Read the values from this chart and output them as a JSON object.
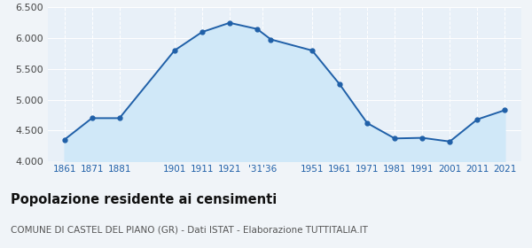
{
  "years": [
    1861,
    1871,
    1881,
    1901,
    1911,
    1921,
    1931,
    1936,
    1951,
    1961,
    1971,
    1981,
    1991,
    2001,
    2011,
    2021
  ],
  "population": [
    4350,
    4700,
    4700,
    5800,
    6100,
    6250,
    6150,
    5980,
    5800,
    5250,
    4620,
    4370,
    4380,
    4320,
    4680,
    4830
  ],
  "ylim": [
    4000,
    6500
  ],
  "yticks": [
    4000,
    4500,
    5000,
    5500,
    6000,
    6500
  ],
  "line_color": "#2060a8",
  "fill_color": "#d0e8f8",
  "marker_color": "#2060a8",
  "background_color": "#f0f4f8",
  "plot_bg_color": "#e8f0f8",
  "grid_color": "#ffffff",
  "x_tick_positions": [
    1861,
    1871,
    1881,
    1901,
    1911,
    1921,
    1933,
    1951,
    1961,
    1971,
    1981,
    1991,
    2001,
    2011,
    2021
  ],
  "x_tick_labels": [
    "1861",
    "1871",
    "1881",
    "1901",
    "1911",
    "1921",
    "'31'36",
    "1951",
    "1961",
    "1971",
    "1981",
    "1991",
    "2001",
    "2011",
    "2021"
  ],
  "tick_color": "#2060a8",
  "tick_fontsize": 7.5,
  "ytick_fontsize": 8,
  "ytick_color": "#444444",
  "title": "Popolazione residente ai censimenti",
  "subtitle": "COMUNE DI CASTEL DEL PIANO (GR) - Dati ISTAT - Elaborazione TUTTITALIA.IT",
  "title_fontsize": 10.5,
  "subtitle_fontsize": 7.5,
  "title_color": "#111111",
  "subtitle_color": "#555555",
  "xlim_left": 1855,
  "xlim_right": 2027
}
